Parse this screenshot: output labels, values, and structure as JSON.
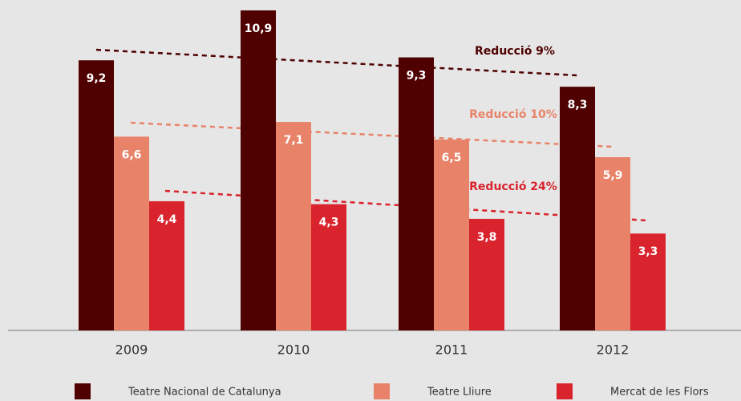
{
  "chart_data": {
    "type": "bar",
    "categories": [
      "2009",
      "2010",
      "2011",
      "2012"
    ],
    "series": [
      {
        "name": "Teatre Nacional de Catalunya",
        "color": "#4f0000",
        "values": [
          9.2,
          10.9,
          9.3,
          8.3
        ],
        "value_labels": [
          "9,2",
          "10,9",
          "9,3",
          "8,3"
        ]
      },
      {
        "name": "Teatre Lliure",
        "color": "#e8836a",
        "values": [
          6.6,
          7.1,
          6.5,
          5.9
        ],
        "value_labels": [
          "6,6",
          "7,1",
          "6,5",
          "5,9"
        ]
      },
      {
        "name": "Mercat de les Flors",
        "color": "#d9232d",
        "values": [
          4.4,
          4.3,
          3.8,
          3.3
        ],
        "value_labels": [
          "4,4",
          "4,3",
          "3,8",
          "3,3"
        ]
      }
    ],
    "annotations": [
      "Reducció 9%",
      "Reducció 10%",
      "Reducció 24%"
    ],
    "ylim": [
      0,
      11
    ]
  }
}
